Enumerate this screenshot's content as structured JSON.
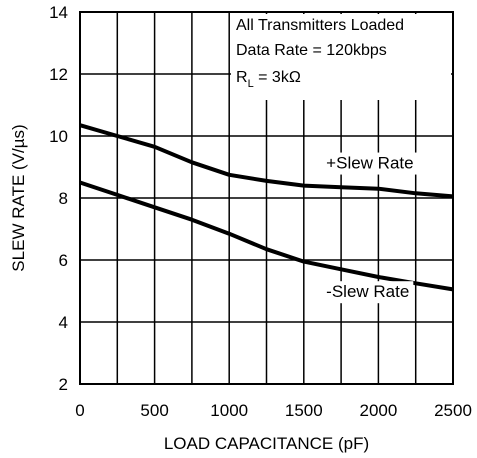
{
  "chart_data": {
    "type": "line",
    "title": "",
    "xlabel": "LOAD CAPACITANCE (pF)",
    "ylabel": "SLEW RATE (V/µs)",
    "xlim": [
      0,
      2500
    ],
    "ylim": [
      2,
      14
    ],
    "x_ticks": [
      0,
      500,
      1000,
      1500,
      2000,
      2500
    ],
    "y_ticks": [
      2,
      4,
      6,
      8,
      10,
      12,
      14
    ],
    "x_gridlines": [
      0,
      250,
      500,
      750,
      1000,
      1250,
      1500,
      1750,
      2000,
      2250,
      2500
    ],
    "y_gridlines": [
      2,
      4,
      6,
      8,
      10,
      12,
      14
    ],
    "grid": true,
    "legend": "none",
    "annotations": {
      "line1": "All Transmitters Loaded",
      "line2": "Data Rate = 120kbps",
      "line3_main": "R",
      "line3_sub": "L",
      "line3_rest": " = 3kΩ"
    },
    "series": [
      {
        "name": "+Slew Rate",
        "label_at": [
          1650,
          8.95
        ],
        "x": [
          0,
          250,
          500,
          750,
          1000,
          1250,
          1500,
          1750,
          2000,
          2250,
          2500
        ],
        "values": [
          10.35,
          10.0,
          9.65,
          9.15,
          8.75,
          8.55,
          8.4,
          8.35,
          8.3,
          8.15,
          8.05
        ]
      },
      {
        "name": "-Slew Rate",
        "label_at": [
          1650,
          4.8
        ],
        "x": [
          0,
          250,
          500,
          750,
          1000,
          1250,
          1500,
          1750,
          2000,
          2250,
          2500
        ],
        "values": [
          8.5,
          8.1,
          7.7,
          7.3,
          6.85,
          6.35,
          5.95,
          5.7,
          5.45,
          5.25,
          5.05
        ]
      }
    ]
  }
}
